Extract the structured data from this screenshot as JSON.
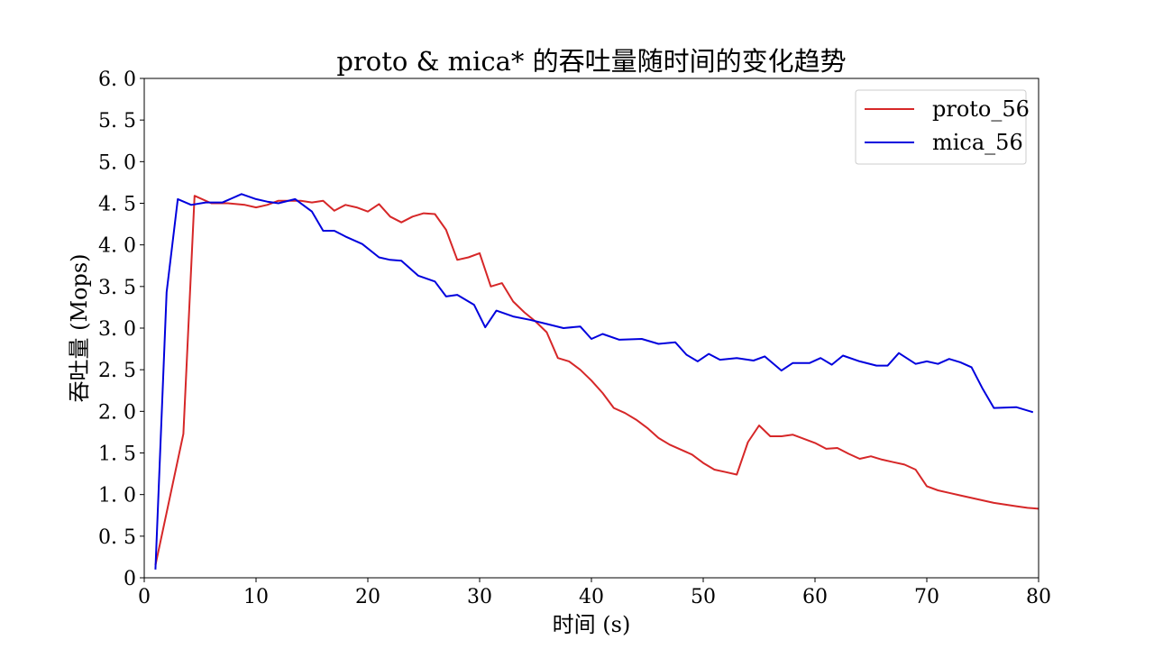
{
  "chart_data": {
    "type": "line",
    "title": "proto & mica* 的吞吐量随时间的变化趋势",
    "xlabel": "时间 (s)",
    "ylabel": "吞吐量 (Mops)",
    "xlim": [
      0,
      80
    ],
    "ylim": [
      0,
      6.0
    ],
    "xticks": [
      0,
      10,
      20,
      30,
      40,
      50,
      60,
      70,
      80
    ],
    "yticks": [
      0,
      0.5,
      1.0,
      1.5,
      2.0,
      2.5,
      3.0,
      3.5,
      4.0,
      4.5,
      5.0,
      5.5,
      6.0
    ],
    "ytick_labels": [
      "0",
      "0. 5",
      "1. 0",
      "1. 5",
      "2. 0",
      "2. 5",
      "3. 0",
      "3. 5",
      "4. 0",
      "4. 5",
      "5. 0",
      "5. 5",
      "6. 0"
    ],
    "grid": false,
    "legend": "top-right",
    "series": [
      {
        "name": "proto_56",
        "color": "#d62728",
        "x": [
          1,
          3.5,
          4.5,
          6,
          7.5,
          9,
          10,
          11,
          12,
          13,
          14,
          15,
          16,
          17,
          18,
          19,
          20,
          21,
          22,
          23,
          24,
          25,
          26,
          27,
          28,
          29,
          30,
          31,
          32,
          33,
          34,
          35,
          36,
          37,
          38,
          39,
          40,
          41,
          42,
          43,
          44,
          45,
          46,
          47,
          48,
          49,
          50,
          51,
          52,
          53,
          54,
          55,
          56,
          57,
          58,
          59,
          60,
          61,
          62,
          63,
          64,
          65,
          66,
          67,
          68,
          69,
          70,
          71,
          72,
          73,
          74,
          75,
          76,
          77,
          78,
          79,
          80
        ],
        "values": [
          0.15,
          1.73,
          4.59,
          4.5,
          4.5,
          4.48,
          4.45,
          4.48,
          4.53,
          4.53,
          4.53,
          4.51,
          4.53,
          4.41,
          4.48,
          4.45,
          4.4,
          4.49,
          4.34,
          4.27,
          4.34,
          4.38,
          4.37,
          4.18,
          3.82,
          3.85,
          3.9,
          3.5,
          3.54,
          3.32,
          3.19,
          3.08,
          2.95,
          2.64,
          2.6,
          2.5,
          2.37,
          2.22,
          2.04,
          1.98,
          1.9,
          1.8,
          1.68,
          1.6,
          1.54,
          1.48,
          1.38,
          1.3,
          1.27,
          1.24,
          1.63,
          1.83,
          1.7,
          1.7,
          1.72,
          1.67,
          1.62,
          1.55,
          1.56,
          1.49,
          1.43,
          1.46,
          1.42,
          1.39,
          1.36,
          1.3,
          1.1,
          1.05,
          1.02,
          0.99,
          0.96,
          0.93,
          0.9,
          0.88,
          0.86,
          0.84,
          0.83
        ]
      },
      {
        "name": "mica_56",
        "color": "#0000dd",
        "x": [
          1,
          2,
          3,
          4.2,
          5.5,
          7,
          8.7,
          10,
          11,
          12,
          13.5,
          15,
          16,
          17,
          18,
          19.5,
          21,
          22,
          23,
          24.5,
          26,
          27,
          28,
          29.5,
          30.5,
          31.5,
          33,
          34.5,
          36,
          37.5,
          39,
          40,
          41,
          42.5,
          44.5,
          46,
          47.5,
          48.5,
          49.5,
          50.5,
          51.5,
          53,
          54.5,
          55.5,
          57,
          58,
          59.5,
          60.5,
          61.5,
          62.5,
          64,
          65.5,
          66.5,
          67.5,
          69,
          70,
          71,
          72,
          73,
          74,
          75,
          76,
          78,
          79.5
        ],
        "values": [
          0.1,
          3.43,
          4.55,
          4.48,
          4.51,
          4.51,
          4.61,
          4.55,
          4.52,
          4.5,
          4.55,
          4.4,
          4.17,
          4.17,
          4.1,
          4.01,
          3.85,
          3.82,
          3.81,
          3.63,
          3.56,
          3.38,
          3.4,
          3.28,
          3.01,
          3.21,
          3.14,
          3.1,
          3.05,
          3.0,
          3.02,
          2.87,
          2.93,
          2.86,
          2.87,
          2.81,
          2.83,
          2.68,
          2.6,
          2.69,
          2.62,
          2.64,
          2.61,
          2.66,
          2.49,
          2.58,
          2.58,
          2.64,
          2.56,
          2.67,
          2.6,
          2.55,
          2.55,
          2.7,
          2.57,
          2.6,
          2.57,
          2.63,
          2.59,
          2.53,
          2.27,
          2.04,
          2.05,
          1.99
        ]
      }
    ]
  }
}
